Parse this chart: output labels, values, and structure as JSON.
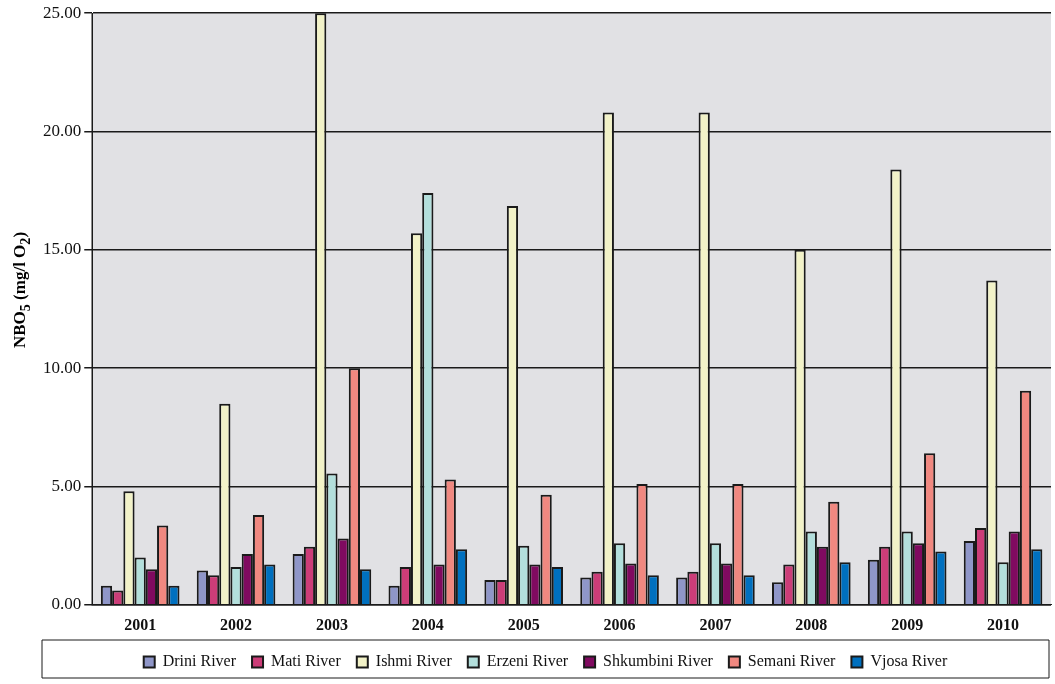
{
  "chart_data": {
    "type": "bar",
    "ylabel": "NBO$_{5}$ (mg/l O$_{2}$)",
    "categories": [
      "2001",
      "2002",
      "2003",
      "2004",
      "2005",
      "2006",
      "2007",
      "2008",
      "2009",
      "2010"
    ],
    "series": [
      {
        "name": "Drini River",
        "color": "#8f96c8",
        "values": [
          0.8,
          1.45,
          2.15,
          0.8,
          1.05,
          1.15,
          1.15,
          0.95,
          1.9,
          2.7
        ]
      },
      {
        "name": "Mati River",
        "color": "#cc3d78",
        "values": [
          0.6,
          1.25,
          2.45,
          1.6,
          1.05,
          1.4,
          1.4,
          1.7,
          2.45,
          3.25
        ]
      },
      {
        "name": "Ishmi River",
        "color": "#f2f2c8",
        "values": [
          4.8,
          8.5,
          25,
          15.7,
          16.85,
          20.8,
          20.8,
          15.0,
          18.4,
          13.7
        ]
      },
      {
        "name": "Erzeni River",
        "color": "#b3dfdc",
        "values": [
          2.0,
          1.6,
          5.55,
          17.4,
          2.5,
          2.6,
          2.6,
          3.1,
          3.1,
          1.8
        ]
      },
      {
        "name": "Shkumbini River",
        "color": "#800a60",
        "values": [
          1.5,
          2.15,
          2.8,
          1.7,
          1.7,
          1.75,
          1.75,
          2.45,
          2.6,
          3.1
        ]
      },
      {
        "name": "Semani River",
        "color": "#f08880",
        "values": [
          3.35,
          3.8,
          10.0,
          5.3,
          4.65,
          5.1,
          5.1,
          4.35,
          6.4,
          9.05
        ]
      },
      {
        "name": "Vjosa River",
        "color": "#0070bf",
        "values": [
          0.8,
          1.7,
          1.5,
          2.35,
          1.6,
          1.25,
          1.25,
          1.8,
          2.25,
          2.35
        ]
      }
    ],
    "ylim": [
      0,
      25
    ],
    "yticks": [
      {
        "value": 0,
        "label": "0.00"
      },
      {
        "value": 5,
        "label": "5.00"
      },
      {
        "value": 10,
        "label": "10.00"
      },
      {
        "value": 15,
        "label": "15.00"
      },
      {
        "value": 20,
        "label": "20.00"
      },
      {
        "value": 25,
        "label": "25.00"
      }
    ],
    "grid": "y",
    "legend": "bottom"
  }
}
